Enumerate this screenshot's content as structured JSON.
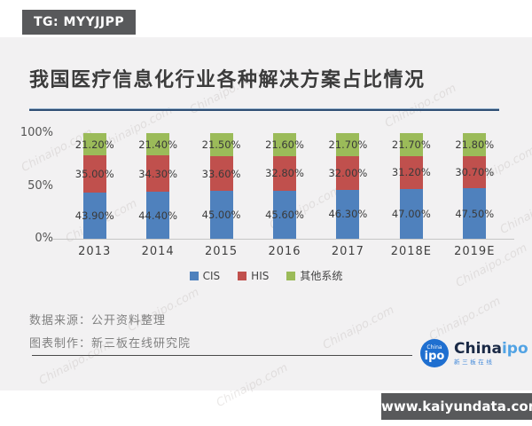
{
  "header": {
    "badge": "TG: MYYJJPP"
  },
  "title": "我国医疗信息化行业各种解决方案占比情况",
  "chart_data": {
    "type": "bar",
    "stacked": true,
    "percent_stacked": true,
    "title": "我国医疗信息化行业各种解决方案占比情况",
    "categories": [
      "2013",
      "2014",
      "2015",
      "2016",
      "2017",
      "2018E",
      "2019E"
    ],
    "series": [
      {
        "name": "CIS",
        "color": "#4f81bd",
        "values": [
          43.9,
          44.4,
          45.0,
          45.6,
          46.3,
          47.0,
          47.5
        ],
        "labels": [
          "43.90%",
          "44.40%",
          "45.00%",
          "45.60%",
          "46.30%",
          "47.00%",
          "47.50%"
        ]
      },
      {
        "name": "HIS",
        "color": "#c0504d",
        "values": [
          35.0,
          34.3,
          33.6,
          32.8,
          32.0,
          31.2,
          30.7
        ],
        "labels": [
          "35.00%",
          "34.30%",
          "33.60%",
          "32.80%",
          "32.00%",
          "31.20%",
          "30.70%"
        ]
      },
      {
        "name": "其他系统",
        "color": "#9bbb59",
        "values": [
          21.2,
          21.4,
          21.5,
          21.6,
          21.7,
          21.7,
          21.8
        ],
        "labels": [
          "21.20%",
          "21.40%",
          "21.50%",
          "21.60%",
          "21.70%",
          "21.70%",
          "21.80%"
        ]
      }
    ],
    "y_ticks": [
      "100%",
      "50%",
      "0%"
    ],
    "ylim": [
      0,
      100
    ],
    "grid": false,
    "legend_position": "bottom"
  },
  "footer": {
    "source_line": "数据来源：公开资料整理",
    "maker_line": "图表制作：新三板在线研究院"
  },
  "logo": {
    "circle_small": "China",
    "circle_big": "ipo",
    "brand_black": "China",
    "brand_blue": "ipo",
    "subtitle": "新三板在线"
  },
  "site_badge": "www.kaiyundata.com",
  "watermark": "Chinaipo.com",
  "colors": {
    "badge_bg": "#58595b",
    "card_bg": "#f2f1f2",
    "title_text": "#3b3b3b",
    "cis_blue": "#4f81bd",
    "his_red": "#c0504d",
    "other_green": "#9bbb59"
  }
}
